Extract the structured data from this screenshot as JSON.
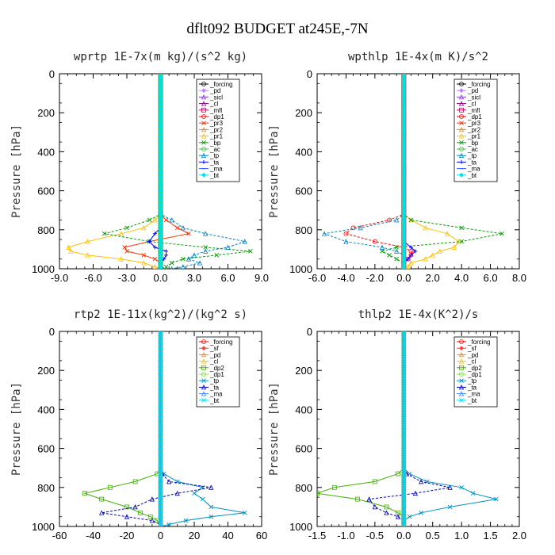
{
  "figure": {
    "title": "dflt092  BUDGET at245E,-7N"
  },
  "chart_data": [
    {
      "type": "line",
      "title": "wprtp  1E-7x(m kg)/(s^2 kg)",
      "ylabel": "Pressure [hPa]",
      "xlim": [
        -9,
        9
      ],
      "ylim": [
        1000,
        0
      ],
      "xticks": [
        "-9.0",
        "-6.0",
        "-3.0",
        "0.0",
        "3.0",
        "6.0",
        "9.0"
      ],
      "xtick_values": [
        -9,
        -6,
        -3,
        0,
        3,
        6,
        9
      ],
      "yticks": [
        "0",
        "200",
        "400",
        "600",
        "800",
        "1000"
      ],
      "ytick_values": [
        0,
        200,
        400,
        600,
        800,
        1000
      ],
      "legend_position": "upper-right",
      "pressure": [
        750,
        790,
        820,
        860,
        890,
        910,
        930,
        950,
        970,
        990,
        1000
      ],
      "series": [
        {
          "name": "_forcing",
          "color": "#000000",
          "values": [
            0,
            0,
            0,
            0,
            0,
            0,
            0,
            0,
            0,
            0,
            0
          ]
        },
        {
          "name": "_pd",
          "color": "#c080ff",
          "values": [
            0,
            0,
            0,
            0,
            0,
            0,
            0,
            0,
            0,
            0,
            0
          ]
        },
        {
          "name": "_sicl",
          "color": "#8040c0",
          "values": [
            0,
            0,
            0,
            0,
            0,
            0,
            0,
            0,
            0,
            0,
            0
          ]
        },
        {
          "name": "_cl",
          "color": "#800080",
          "values": [
            0,
            0,
            0,
            0,
            0,
            0,
            0,
            0,
            0,
            0,
            0
          ]
        },
        {
          "name": "_mfl",
          "color": "#c00060",
          "values": [
            0,
            0,
            0,
            0,
            0,
            0,
            0,
            0,
            0,
            0,
            0
          ]
        },
        {
          "name": "_dp1",
          "color": "#ff0000",
          "values": [
            0,
            0,
            0,
            0,
            0,
            0,
            0,
            0,
            0,
            0,
            0
          ]
        },
        {
          "name": "_pr3",
          "color": "#ff3000",
          "values": [
            0.5,
            1.5,
            2.5,
            -1.0,
            -3.2,
            -3.0,
            -1.5,
            -0.5,
            0,
            0,
            0
          ]
        },
        {
          "name": "_pr2",
          "color": "#ff8000",
          "values": [
            0,
            0,
            0,
            0,
            0,
            0,
            0,
            0,
            0,
            0,
            0
          ]
        },
        {
          "name": "_pr1",
          "color": "#ffc000",
          "values": [
            -0.5,
            -1.5,
            -3.5,
            -6.5,
            -8.2,
            -8.0,
            -6.5,
            -3.5,
            -1.5,
            -0.5,
            0
          ]
        },
        {
          "name": "_bp",
          "color": "#00a000",
          "values": [
            -1.0,
            -3.0,
            -5.0,
            -1.0,
            4.0,
            8.0,
            5.0,
            2.0,
            1.0,
            0.5,
            0
          ]
        },
        {
          "name": "_ac",
          "color": "#40c040",
          "values": [
            0,
            0,
            0,
            0,
            0,
            0,
            0,
            0,
            0,
            0,
            0
          ]
        },
        {
          "name": "_tp",
          "color": "#0080c0",
          "values": [
            1.0,
            2.0,
            4.0,
            7.5,
            6.0,
            4.0,
            3.0,
            2.5,
            3.5,
            2.0,
            1.0
          ]
        },
        {
          "name": "_ta",
          "color": "#0000ff",
          "values": [
            0,
            0,
            -0.5,
            -1.0,
            -0.5,
            0.5,
            0.5,
            0.3,
            0,
            0,
            0
          ]
        },
        {
          "name": "_ma",
          "color": "#4060ff",
          "values": [
            0,
            0,
            0,
            0,
            0,
            0,
            0,
            0,
            0,
            0,
            0
          ]
        },
        {
          "name": "_bt",
          "color": "#00e0e0",
          "values": [
            0,
            0,
            0,
            0,
            0,
            0,
            0,
            0,
            0,
            0,
            0
          ]
        }
      ]
    },
    {
      "type": "line",
      "title": "wpthlp  1E-4x(m K)/s^2",
      "ylabel": "Pressure [hPa]",
      "xlim": [
        -6,
        8
      ],
      "ylim": [
        1000,
        0
      ],
      "xticks": [
        "-6.0",
        "-4.0",
        "-2.0",
        "0.0",
        "2.0",
        "4.0",
        "6.0",
        "8.0"
      ],
      "xtick_values": [
        -6,
        -4,
        -2,
        0,
        2,
        4,
        6,
        8
      ],
      "yticks": [
        "0",
        "200",
        "400",
        "600",
        "800",
        "1000"
      ],
      "ytick_values": [
        0,
        200,
        400,
        600,
        800,
        1000
      ],
      "legend_position": "upper-right",
      "pressure": [
        750,
        790,
        820,
        860,
        890,
        910,
        930,
        950,
        970,
        990,
        1000
      ],
      "series": [
        {
          "name": "_forcing",
          "color": "#000000",
          "values": [
            0,
            0,
            0,
            0,
            0,
            0,
            0,
            0,
            0,
            0,
            0
          ]
        },
        {
          "name": "_pd",
          "color": "#c080ff",
          "values": [
            0,
            0,
            0,
            0,
            0,
            0,
            0,
            0,
            0,
            0,
            0
          ]
        },
        {
          "name": "_sicl",
          "color": "#8040c0",
          "values": [
            0,
            0,
            0,
            0,
            0,
            0,
            0,
            0,
            0,
            0,
            0
          ]
        },
        {
          "name": "_cl",
          "color": "#800080",
          "values": [
            0,
            0,
            0,
            0,
            0,
            0,
            0,
            0,
            0,
            0,
            0
          ]
        },
        {
          "name": "_mfl",
          "color": "#c00060",
          "values": [
            0,
            0,
            0,
            0,
            0,
            0,
            0,
            0,
            0,
            0,
            0
          ]
        },
        {
          "name": "_dp1",
          "color": "#ff0000",
          "values": [
            -1.0,
            -3.5,
            -4.0,
            -2.0,
            0,
            0.5,
            0.5,
            0.3,
            0,
            0,
            0
          ]
        },
        {
          "name": "_pr3",
          "color": "#ff3000",
          "values": [
            0,
            0,
            0,
            0,
            0,
            0,
            0,
            0,
            0,
            0,
            0
          ]
        },
        {
          "name": "_pr2",
          "color": "#ff8000",
          "values": [
            0,
            0,
            0,
            0,
            0,
            0,
            0,
            0,
            0,
            0,
            0
          ]
        },
        {
          "name": "_pr1",
          "color": "#ffc000",
          "values": [
            0.5,
            1.5,
            3.0,
            3.8,
            3.5,
            2.5,
            2.0,
            1.5,
            0.5,
            0.3,
            0
          ]
        },
        {
          "name": "_bp",
          "color": "#00a000",
          "values": [
            0.5,
            4.0,
            6.8,
            4.0,
            -0.5,
            -1.5,
            -1.0,
            -0.5,
            0,
            0,
            0
          ]
        },
        {
          "name": "_ac",
          "color": "#40c040",
          "values": [
            0,
            0,
            0,
            0,
            0,
            0,
            0,
            0,
            0,
            0,
            0
          ]
        },
        {
          "name": "_tp",
          "color": "#0080c0",
          "values": [
            -0.5,
            -3.0,
            -5.5,
            -4.0,
            -1.5,
            -0.5,
            0,
            0,
            0,
            0,
            0
          ]
        },
        {
          "name": "_ta",
          "color": "#0000ff",
          "values": [
            0,
            0,
            0,
            0,
            0.5,
            0.8,
            0.5,
            0.3,
            0,
            0,
            0
          ]
        },
        {
          "name": "_ma",
          "color": "#4060ff",
          "values": [
            0,
            0,
            0,
            0,
            0,
            0,
            0,
            0,
            0,
            0,
            0
          ]
        },
        {
          "name": "_bt",
          "color": "#00e0e0",
          "values": [
            0,
            0,
            0,
            0,
            0,
            0,
            0,
            0,
            0,
            0,
            0
          ]
        }
      ]
    },
    {
      "type": "line",
      "title": "rtp2  1E-11x(kg^2)/(kg^2 s)",
      "ylabel": "Pressure [hPa]",
      "xlim": [
        -60,
        60
      ],
      "ylim": [
        1000,
        0
      ],
      "xticks": [
        "-60",
        "-40",
        "-20",
        "0",
        "20",
        "40",
        "60"
      ],
      "xtick_values": [
        -60,
        -40,
        -20,
        0,
        20,
        40,
        60
      ],
      "yticks": [
        "0",
        "200",
        "400",
        "600",
        "800",
        "1000"
      ],
      "ytick_values": [
        0,
        200,
        400,
        600,
        800,
        1000
      ],
      "legend_position": "upper-right",
      "pressure": [
        730,
        770,
        800,
        830,
        860,
        900,
        930,
        950,
        970,
        990,
        1000
      ],
      "series": [
        {
          "name": "_forcing",
          "color": "#ff0000",
          "values": [
            0,
            0,
            0,
            0,
            0,
            0,
            0,
            0,
            0,
            0,
            0
          ]
        },
        {
          "name": "_sf",
          "color": "#ff4040",
          "values": [
            0,
            0,
            0,
            0,
            0,
            0,
            0,
            0,
            0,
            0,
            0
          ]
        },
        {
          "name": "_pd",
          "color": "#ff8000",
          "values": [
            0,
            0,
            0,
            0,
            0,
            0,
            0,
            0,
            0,
            0,
            0
          ]
        },
        {
          "name": "_cl",
          "color": "#ffc000",
          "values": [
            0,
            0,
            0,
            0,
            0,
            0,
            0,
            0,
            0,
            0,
            0
          ]
        },
        {
          "name": "_dp2",
          "color": "#40b000",
          "values": [
            -2,
            -15,
            -30,
            -45,
            -35,
            -20,
            -12,
            -6,
            -2,
            0,
            0
          ]
        },
        {
          "name": "_dp1",
          "color": "#80e040",
          "values": [
            0,
            0,
            0,
            0,
            0,
            0,
            0,
            0,
            0,
            0,
            0
          ]
        },
        {
          "name": "_tp",
          "color": "#0090c0",
          "values": [
            2,
            10,
            25,
            20,
            25,
            30,
            50,
            30,
            15,
            5,
            0
          ]
        },
        {
          "name": "_ta",
          "color": "#0000c0",
          "values": [
            1,
            5,
            30,
            10,
            -5,
            -15,
            -35,
            -20,
            -5,
            0,
            0
          ]
        },
        {
          "name": "_ma",
          "color": "#4080ff",
          "values": [
            0,
            0,
            0,
            0,
            0,
            0,
            0,
            0,
            0,
            0,
            0
          ]
        },
        {
          "name": "_bt",
          "color": "#00e0e0",
          "values": [
            0,
            0,
            0,
            0,
            0,
            0,
            0,
            0,
            0,
            0,
            0
          ]
        }
      ]
    },
    {
      "type": "line",
      "title": "thlp2  1E-4x(K^2)/s",
      "ylabel": "Pressure [hPa]",
      "xlim": [
        -1.5,
        2.0
      ],
      "ylim": [
        1000,
        0
      ],
      "xticks": [
        "-1.5",
        "-1.0",
        "-0.5",
        "0.0",
        "0.5",
        "1.0",
        "1.5",
        "2.0"
      ],
      "xtick_values": [
        -1.5,
        -1.0,
        -0.5,
        0,
        0.5,
        1.0,
        1.5,
        2.0
      ],
      "yticks": [
        "0",
        "200",
        "400",
        "600",
        "800",
        "1000"
      ],
      "ytick_values": [
        0,
        200,
        400,
        600,
        800,
        1000
      ],
      "legend_position": "upper-right",
      "pressure": [
        730,
        770,
        800,
        830,
        860,
        900,
        930,
        950,
        970,
        990,
        1000
      ],
      "series": [
        {
          "name": "_forcing",
          "color": "#ff0000",
          "values": [
            0,
            0,
            0,
            0,
            0,
            0,
            0,
            0,
            0,
            0,
            0
          ]
        },
        {
          "name": "_sf",
          "color": "#ff4040",
          "values": [
            0,
            0,
            0,
            0,
            0,
            0,
            0,
            0,
            0,
            0,
            0
          ]
        },
        {
          "name": "_pd",
          "color": "#ff8000",
          "values": [
            0,
            0,
            0,
            0,
            0,
            0,
            0,
            0,
            0,
            0,
            0
          ]
        },
        {
          "name": "_cl",
          "color": "#ffc000",
          "values": [
            0,
            0,
            0,
            0,
            0,
            0,
            0,
            0,
            0,
            0,
            0
          ]
        },
        {
          "name": "_dp2",
          "color": "#40b000",
          "values": [
            -0.1,
            -0.5,
            -1.2,
            -1.5,
            -0.8,
            -0.3,
            -0.1,
            0,
            0,
            0,
            0
          ]
        },
        {
          "name": "_dp1",
          "color": "#80e040",
          "values": [
            0,
            0,
            0,
            0,
            0,
            0,
            0,
            0,
            0,
            0,
            0
          ]
        },
        {
          "name": "_tp",
          "color": "#0090c0",
          "values": [
            0.1,
            0.4,
            1.0,
            1.2,
            1.6,
            0.8,
            0.3,
            0.1,
            0,
            0,
            0
          ]
        },
        {
          "name": "_ta",
          "color": "#0000c0",
          "values": [
            0.05,
            0.3,
            0.8,
            0.2,
            -0.6,
            -0.5,
            -0.3,
            -0.1,
            0,
            0,
            0
          ]
        },
        {
          "name": "_ma",
          "color": "#4080ff",
          "values": [
            0,
            0,
            0,
            0,
            0,
            0,
            0,
            0,
            0,
            0,
            0
          ]
        },
        {
          "name": "_bt",
          "color": "#00e0e0",
          "values": [
            0,
            0,
            0,
            0,
            0,
            0,
            0,
            0,
            0,
            0,
            0
          ]
        }
      ]
    }
  ]
}
